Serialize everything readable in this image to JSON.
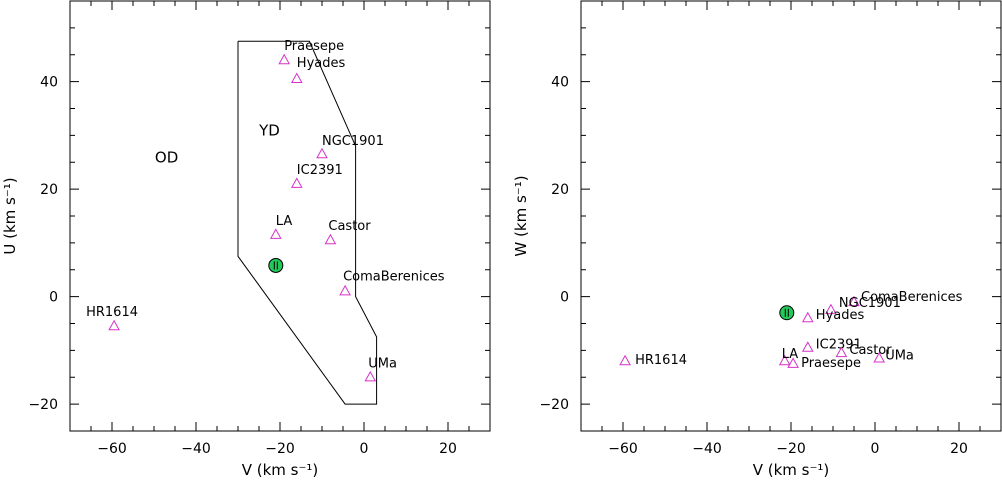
{
  "chart_data": [
    {
      "type": "scatter",
      "xlabel": "V (km s⁻¹)",
      "ylabel": "U (km s⁻¹)",
      "xlim": [
        -70,
        30
      ],
      "ylim": [
        -25,
        55
      ],
      "xticks": [
        -60,
        -40,
        -20,
        0,
        20
      ],
      "yticks": [
        -20,
        0,
        20,
        40
      ],
      "xtick_labels": [
        "−60",
        "−40",
        "−20",
        "0",
        "20"
      ],
      "ytick_labels": [
        "−20",
        "0",
        "20",
        "40"
      ],
      "grid": false,
      "series": [
        {
          "marker": "triangle-open",
          "color": "#d633c8",
          "points": [
            {
              "label": "Praesepe",
              "x": -19,
              "y": 44
            },
            {
              "label": "Hyades",
              "x": -16,
              "y": 40.5
            },
            {
              "label": "NGC1901",
              "x": -10,
              "y": 26.5
            },
            {
              "label": "IC2391",
              "x": -16,
              "y": 21
            },
            {
              "label": "LA",
              "x": -21,
              "y": 11.5
            },
            {
              "label": "Castor",
              "x": -8,
              "y": 10.5
            },
            {
              "label": "ComaBerenices",
              "x": -4.5,
              "y": 1
            },
            {
              "label": "HR1614",
              "x": -59.5,
              "y": -5.5
            },
            {
              "label": "UMa",
              "x": 1.5,
              "y": -15
            }
          ]
        },
        {
          "marker": "circle-filled",
          "color": "#22c85a",
          "points": [
            {
              "label": "",
              "x": -21,
              "y": 5.8
            }
          ]
        }
      ],
      "region_polygon": [
        [
          -30,
          47.5
        ],
        [
          -13,
          47.5
        ],
        [
          -2,
          28
        ],
        [
          -2,
          0
        ],
        [
          3,
          -7.5
        ],
        [
          3,
          -20
        ],
        [
          -4.5,
          -20
        ],
        [
          -30,
          7.5
        ],
        [
          -30,
          47.5
        ]
      ],
      "annotations": [
        {
          "text": "OD",
          "x": -47,
          "y": 25
        },
        {
          "text": "YD",
          "x": -22.5,
          "y": 30
        }
      ]
    },
    {
      "type": "scatter",
      "xlabel": "V (km s⁻¹)",
      "ylabel": "W (km s⁻¹)",
      "xlim": [
        -70,
        30
      ],
      "ylim": [
        -25,
        55
      ],
      "xticks": [
        -60,
        -40,
        -20,
        0,
        20
      ],
      "yticks": [
        -20,
        0,
        20,
        40
      ],
      "xtick_labels": [
        "−60",
        "−40",
        "−20",
        "0",
        "20"
      ],
      "ytick_labels": [
        "−20",
        "0",
        "20",
        "40"
      ],
      "grid": false,
      "series": [
        {
          "marker": "triangle-open",
          "color": "#d633c8",
          "points": [
            {
              "label": "ComaBerenices",
              "x": -5,
              "y": -1
            },
            {
              "label": "NGC1901",
              "x": -10.5,
              "y": -2.5
            },
            {
              "label": "Hyades",
              "x": -16,
              "y": -4
            },
            {
              "label": "IC2391",
              "x": -16,
              "y": -9.5
            },
            {
              "label": "Castor",
              "x": -8,
              "y": -10.5
            },
            {
              "label": "UMa",
              "x": 1,
              "y": -11.5
            },
            {
              "label": "LA",
              "x": -21.5,
              "y": -12
            },
            {
              "label": "Praesepe",
              "x": -19.5,
              "y": -12.5
            },
            {
              "label": "HR1614",
              "x": -59.5,
              "y": -12
            }
          ]
        },
        {
          "marker": "circle-filled",
          "color": "#22c85a",
          "points": [
            {
              "label": "",
              "x": -21,
              "y": -3
            }
          ]
        }
      ],
      "annotations": []
    }
  ]
}
